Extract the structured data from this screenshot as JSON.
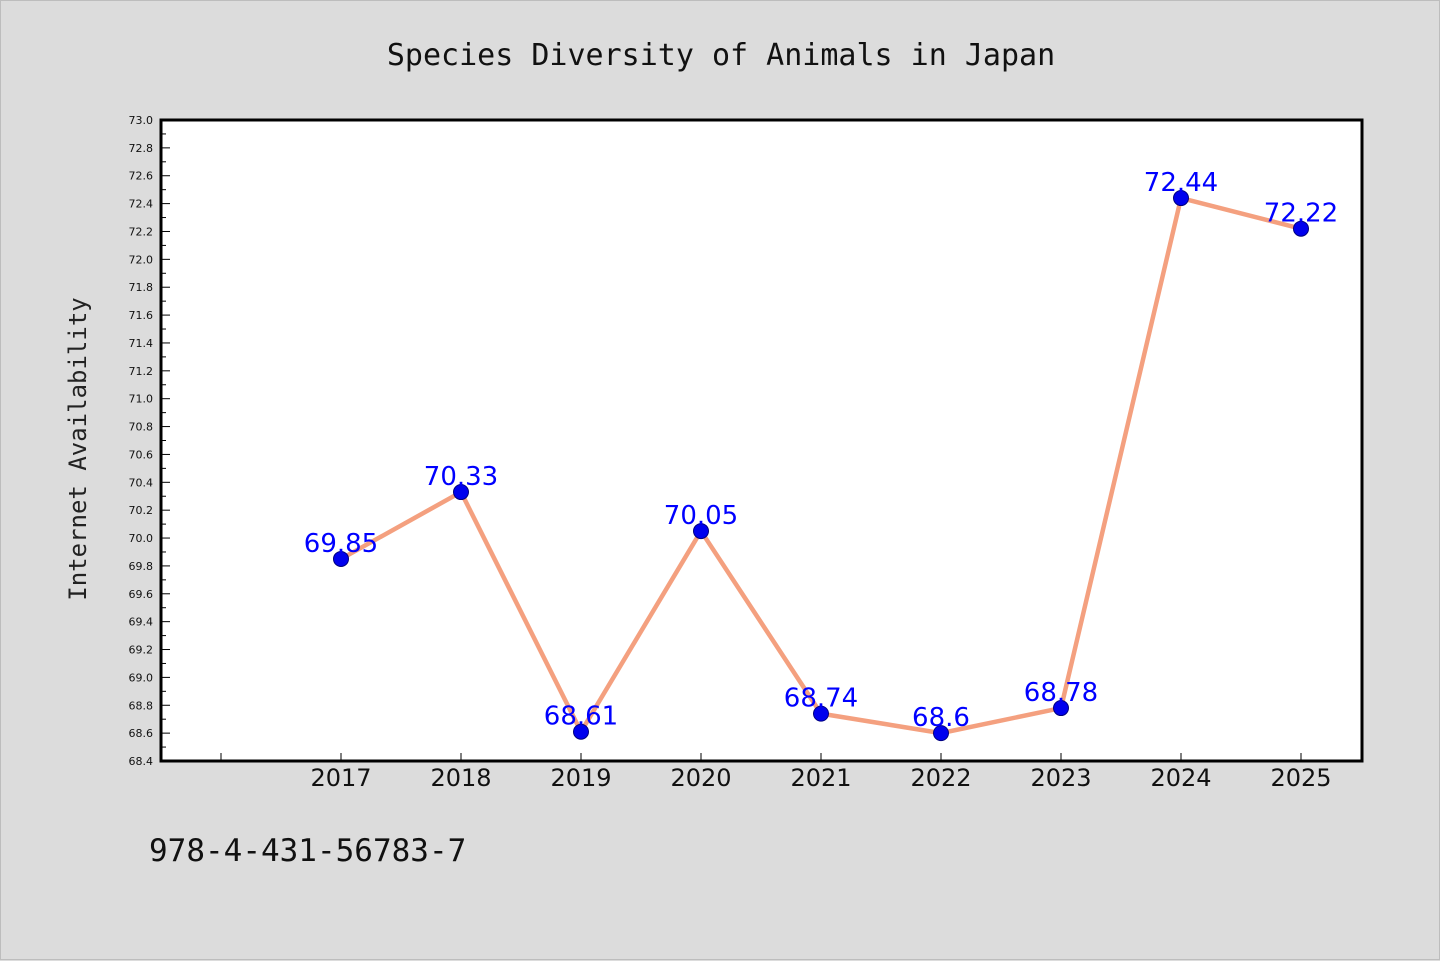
{
  "chart_data": {
    "type": "line",
    "title": "Species Diversity of Animals in Japan",
    "xlabel": "",
    "ylabel": "Internet Availability",
    "categories": [
      "2017",
      "2018",
      "2019",
      "2020",
      "2021",
      "2022",
      "2023",
      "2024",
      "2025"
    ],
    "series": [
      {
        "values": [
          69.85,
          70.33,
          68.61,
          70.05,
          68.74,
          68.6,
          68.78,
          72.44,
          72.22
        ],
        "labels": [
          "69.85",
          "70.33",
          "68.61",
          "70.05",
          "68.74",
          "68.6",
          "68.78",
          "72.44",
          "72.22"
        ]
      }
    ],
    "ylim": [
      68.4,
      73.0
    ],
    "y_ticks": [
      "68.4",
      "68.6",
      "68.8",
      "69.0",
      "69.2",
      "69.4",
      "69.6",
      "69.8",
      "70.0",
      "70.2",
      "70.4",
      "70.6",
      "70.8",
      "71.0",
      "71.2",
      "71.4",
      "71.6",
      "71.8",
      "72.0",
      "72.2",
      "72.4",
      "72.6",
      "72.8",
      "73.0"
    ],
    "grid": false,
    "colors": {
      "line": "#f4a07f",
      "marker": "#0000ee",
      "data_label": "#0000ff",
      "background": "#dcdcdc",
      "plot_background": "#ffffff"
    }
  },
  "footer": {
    "code": "978-4-431-56783-7"
  }
}
